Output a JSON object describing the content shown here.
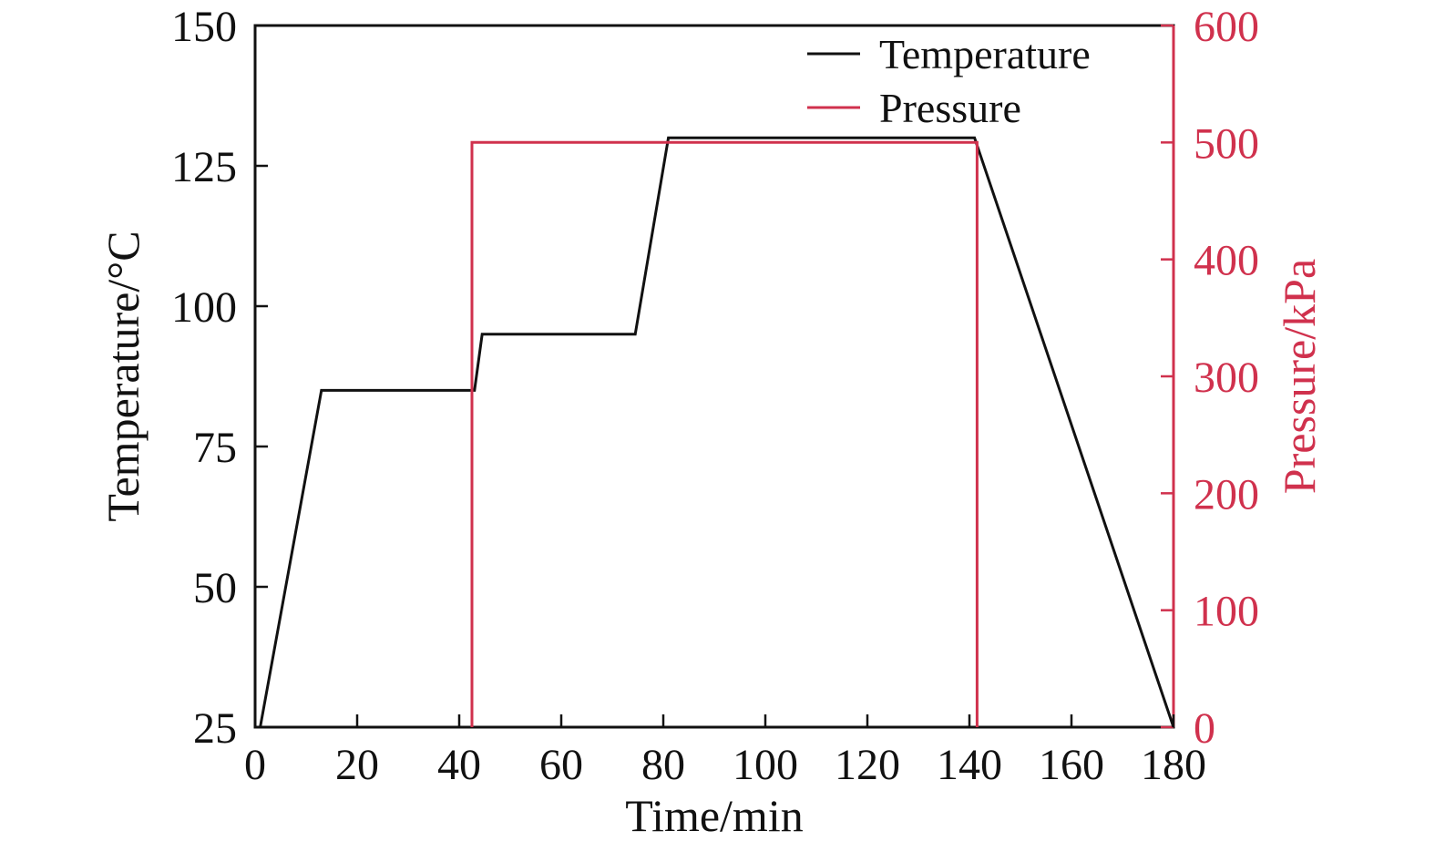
{
  "chart_data": {
    "type": "line",
    "xlabel": "Time/min",
    "ylabel_left": "Temperature/°C",
    "ylabel_right": "Pressure/kPa",
    "xlim": [
      0,
      180
    ],
    "ylim_left": [
      25,
      150
    ],
    "ylim_right": [
      0,
      600
    ],
    "x_ticks": [
      0,
      20,
      40,
      60,
      80,
      100,
      120,
      140,
      160,
      180
    ],
    "y_left_ticks": [
      25,
      50,
      75,
      100,
      125,
      150
    ],
    "y_right_ticks": [
      0,
      100,
      200,
      300,
      400,
      500,
      600
    ],
    "grid": false,
    "legend_position": "top-right",
    "colors": {
      "temperature": "#111111",
      "pressure": "#d0314d",
      "axis": "#111111"
    },
    "series": [
      {
        "name": "Temperature",
        "axis": "left",
        "x": [
          1,
          13,
          43,
          44.5,
          74.5,
          81,
          141,
          180
        ],
        "y": [
          25,
          85,
          85,
          95,
          95,
          130,
          130,
          25
        ]
      },
      {
        "name": "Pressure",
        "axis": "right",
        "x": [
          42.5,
          42.5,
          141.5,
          141.5
        ],
        "y": [
          0,
          500,
          500,
          0
        ]
      }
    ]
  }
}
